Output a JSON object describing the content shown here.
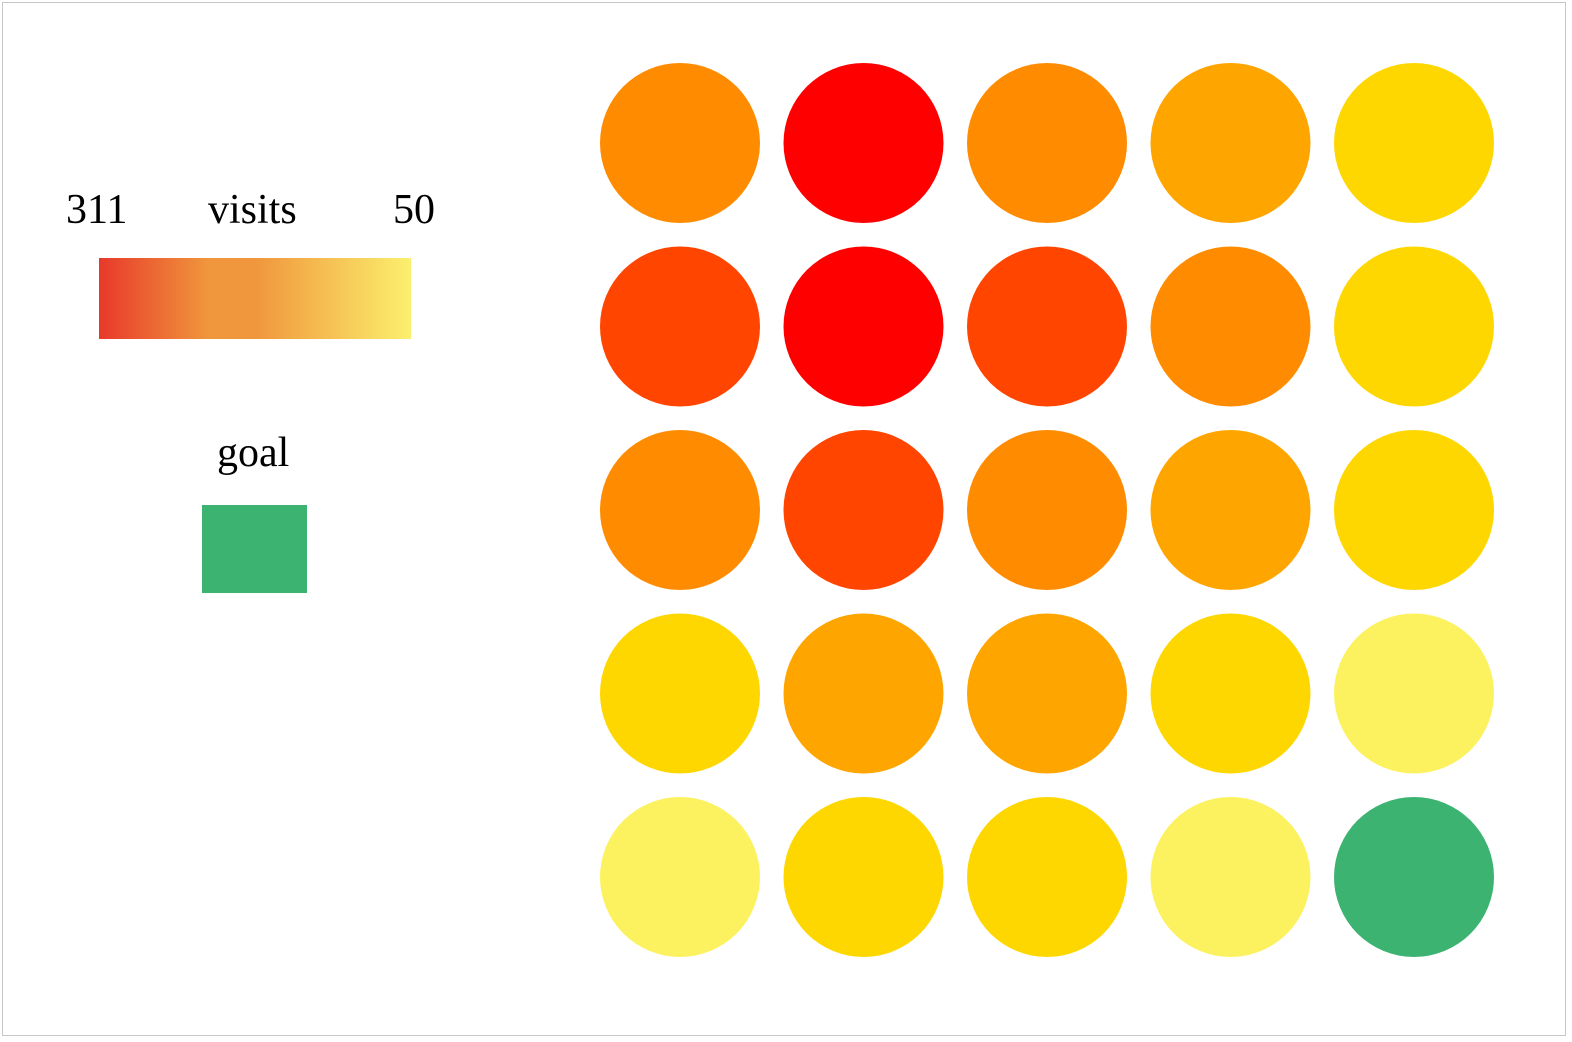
{
  "chart_data": {
    "type": "heatmap",
    "title": "",
    "shape": "circle",
    "legend": {
      "scale_title": "visits",
      "scale_min_label": "311",
      "scale_max_label": "50",
      "scale_start_value": 311,
      "scale_end_value": 50,
      "scale_gradient_colors": [
        "#e8392b",
        "#f0963c",
        "#fbf06e"
      ],
      "goal_label": "goal",
      "goal_color": "#3cb371"
    },
    "grid": {
      "rows": 5,
      "cols": 5,
      "values": [
        [
          230,
          311,
          230,
          190,
          120
        ],
        [
          270,
          311,
          270,
          230,
          120
        ],
        [
          230,
          270,
          230,
          190,
          120
        ],
        [
          120,
          190,
          190,
          120,
          60
        ],
        [
          60,
          120,
          120,
          60,
          null
        ]
      ],
      "goal_cells": [
        [
          4,
          4
        ]
      ],
      "colors": [
        [
          "#ff8c00",
          "#ff0000",
          "#ff8c00",
          "#ffa500",
          "#ffd700"
        ],
        [
          "#ff4500",
          "#ff0000",
          "#ff4500",
          "#ff8c00",
          "#ffd700"
        ],
        [
          "#ff8c00",
          "#ff4500",
          "#ff8c00",
          "#ffa500",
          "#ffd700"
        ],
        [
          "#ffd700",
          "#ffa500",
          "#ffa500",
          "#ffd700",
          "#fcf260"
        ],
        [
          "#fcf260",
          "#ffd700",
          "#ffd700",
          "#fcf260",
          "#3cb371"
        ]
      ]
    }
  }
}
